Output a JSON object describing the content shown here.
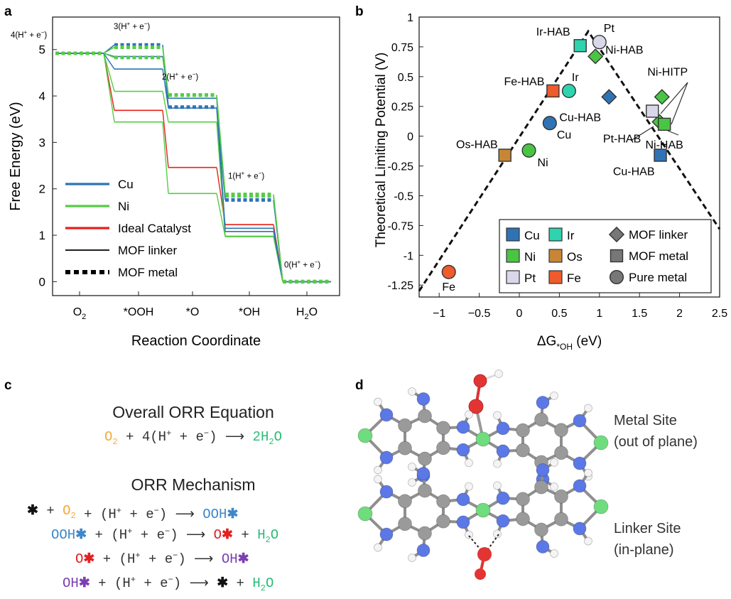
{
  "panel_labels": {
    "a": "a",
    "b": "b",
    "c": "c",
    "d": "d"
  },
  "chart_data": [
    {
      "panel": "a",
      "type": "line",
      "xlabel": "Reaction Coordinate",
      "ylabel": "Free Energy (eV)",
      "ylim": [
        -0.3,
        5.7
      ],
      "yticks": [
        0,
        1,
        2,
        3,
        4,
        5
      ],
      "categories": [
        "O₂",
        "*OOH",
        "*O",
        "*OH",
        "H₂O"
      ],
      "step_labels": [
        "4(H⁺ + e⁻)",
        "3(H⁺ + e⁻)",
        "2(H⁺ + e⁻)",
        "1(H⁺ + e⁻)",
        "0(H⁺ + e⁻)"
      ],
      "series": [
        {
          "name": "Ideal Catalyst",
          "color": "#e8211b",
          "style": "solid",
          "values": [
            4.92,
            3.69,
            2.46,
            1.23,
            0
          ]
        },
        {
          "name": "MOF linker",
          "metal": "Ni",
          "color": "#55cc45",
          "style": "solid",
          "values": [
            4.92,
            3.44,
            1.9,
            0.97,
            0
          ]
        },
        {
          "name": "MOF linker",
          "metal": "Ni",
          "color": "#55cc45",
          "style": "solid",
          "values": [
            4.92,
            4.1,
            3.44,
            0.98,
            0
          ]
        },
        {
          "name": "MOF linker",
          "metal": "Cu",
          "color": "#2f73b5",
          "style": "solid",
          "values": [
            4.92,
            4.58,
            3.74,
            1.15,
            0
          ]
        },
        {
          "name": "MOF linker",
          "metal": "Cu",
          "color": "#2f73b5",
          "style": "solid",
          "values": [
            4.92,
            4.85,
            3.95,
            1.08,
            0
          ]
        },
        {
          "name": "MOF metal",
          "metal": "Ni",
          "color": "#55cc45",
          "style": "dashed",
          "values": [
            4.92,
            4.83,
            4.02,
            1.85,
            0
          ]
        },
        {
          "name": "MOF metal",
          "metal": "Cu",
          "color": "#2f73b5",
          "style": "dashed",
          "values": [
            4.92,
            5.1,
            3.76,
            1.76,
            0
          ]
        },
        {
          "name": "MOF metal",
          "metal": "Ni",
          "color": "#55cc45",
          "style": "dashed",
          "values": [
            4.92,
            5.05,
            4.02,
            1.88,
            0
          ]
        }
      ],
      "legend": [
        {
          "label": "Cu",
          "color": "#2f73b5",
          "style": "solid"
        },
        {
          "label": "Ni",
          "color": "#55cc45",
          "style": "solid"
        },
        {
          "label": "Ideal Catalyst",
          "color": "#e8211b",
          "style": "solid"
        },
        {
          "label": "MOF linker",
          "color": "#000000",
          "style": "thin"
        },
        {
          "label": "MOF metal",
          "color": "#000000",
          "style": "dashed"
        }
      ]
    },
    {
      "panel": "b",
      "type": "scatter",
      "xlabel": "ΔG*OH (eV)",
      "ylabel": "Theoretical Limiting Potential (V)",
      "xlim": [
        -1.25,
        2.5
      ],
      "ylim": [
        -1.35,
        1.0
      ],
      "xticks": [
        -1,
        -0.5,
        0,
        0.5,
        1,
        1.5,
        2,
        2.5
      ],
      "xtick_labels": [
        "−1",
        "−0.5",
        "0",
        "0.5",
        "1",
        "1.5",
        "2",
        "2.5"
      ],
      "yticks": [
        1,
        0.75,
        0.5,
        0.25,
        0,
        -0.25,
        -0.5,
        -0.75,
        -1,
        -1.25
      ],
      "ytick_labels": [
        "1",
        "0.75",
        "0.5",
        "0.25",
        "0",
        "-0.25",
        "-0.5",
        "-0.75",
        "-1",
        "-1.25"
      ],
      "volcano": [
        [
          -1.25,
          -1.3
        ],
        [
          0.86,
          0.88
        ],
        [
          2.5,
          -0.78
        ]
      ],
      "points": [
        {
          "label": "Fe",
          "x": -0.88,
          "y": -1.14,
          "shape": "circle",
          "color": "#ee5b2c"
        },
        {
          "label": "Os-HAB",
          "x": -0.18,
          "y": -0.16,
          "shape": "square",
          "color": "#c88635"
        },
        {
          "label": "Ni",
          "x": 0.12,
          "y": -0.12,
          "shape": "circle",
          "color": "#4ac543"
        },
        {
          "label": "Cu",
          "x": 0.38,
          "y": 0.11,
          "shape": "circle",
          "color": "#2f73b5"
        },
        {
          "label": "Fe-HAB",
          "x": 0.42,
          "y": 0.38,
          "shape": "square",
          "color": "#ee5b2c"
        },
        {
          "label": "Ir",
          "x": 0.62,
          "y": 0.38,
          "shape": "circle",
          "color": "#2fd3ae"
        },
        {
          "label": "Ir-HAB",
          "x": 0.76,
          "y": 0.76,
          "shape": "square",
          "color": "#2fd3ae"
        },
        {
          "label": "Pt",
          "x": 1.0,
          "y": 0.79,
          "shape": "circle",
          "color": "#d9d8e8"
        },
        {
          "label": "Ni-HAB",
          "x": 0.95,
          "y": 0.67,
          "shape": "diamond",
          "color": "#4ac543"
        },
        {
          "label": "Cu-HAB",
          "x": 1.12,
          "y": 0.33,
          "shape": "diamond",
          "color": "#2f73b5"
        },
        {
          "label": "Ni-HITP",
          "x": 1.78,
          "y": 0.33,
          "shape": "diamond",
          "color": "#4ac543"
        },
        {
          "label": "Ni-HITP",
          "x": 1.75,
          "y": 0.12,
          "shape": "diamond",
          "color": "#4ac543"
        },
        {
          "label": "Ni-HAB",
          "x": 1.81,
          "y": 0.1,
          "shape": "square",
          "color": "#4ac543"
        },
        {
          "label": "Pt-HAB",
          "x": 1.66,
          "y": 0.21,
          "shape": "square",
          "color": "#d9d8e8"
        },
        {
          "label": "Cu-HAB",
          "x": 1.76,
          "y": -0.16,
          "shape": "square",
          "color": "#2f73b5"
        }
      ],
      "legend": {
        "colors": [
          {
            "label": "Cu",
            "color": "#2f73b5"
          },
          {
            "label": "Ir",
            "color": "#2fd3ae"
          },
          {
            "label": "Ni",
            "color": "#4ac543"
          },
          {
            "label": "Os",
            "color": "#c88635"
          },
          {
            "label": "Pt",
            "color": "#d9d8e8"
          },
          {
            "label": "Fe",
            "color": "#ee5b2c"
          }
        ],
        "shapes": [
          {
            "label": "MOF linker",
            "shape": "diamond"
          },
          {
            "label": "MOF metal",
            "shape": "square"
          },
          {
            "label": "Pure metal",
            "shape": "circle"
          }
        ]
      }
    }
  ],
  "panel_c": {
    "overall_title": "Overall ORR Equation",
    "mechanism_title": "ORR Mechanism",
    "colors": {
      "o2": "#f4a93b",
      "h2o": "#2dbb78",
      "ooh": "#3f87c9",
      "o": "#e32020",
      "oh": "#7a3fb0",
      "star": "#111111"
    },
    "text": {
      "plus": "+",
      "arrow": "⟶",
      "star": "✱",
      "o2": "O",
      "o2_sub": "2",
      "h2o_h": "H",
      "h2o_sub": "2",
      "h2o_o": "O",
      "h2o_coef": "2",
      "four": "4",
      "proton_open": "(H",
      "plus_sup": "+",
      "mid": " + e",
      "minus_sup": "−",
      "proton_close": ")",
      "ooh": "OOH",
      "o": "O",
      "oh": "OH"
    }
  },
  "panel_d": {
    "metal_site": [
      "Metal Site",
      "(out of plane)"
    ],
    "linker_site": [
      "Linker Site",
      "(in-plane)"
    ]
  }
}
